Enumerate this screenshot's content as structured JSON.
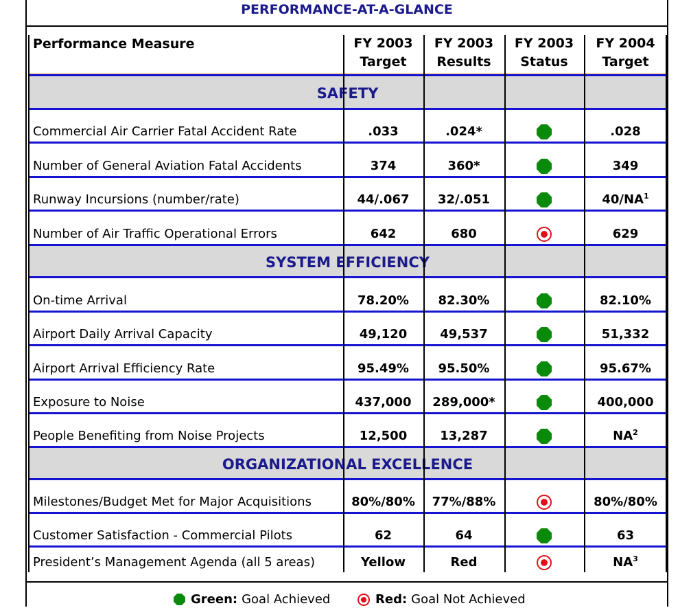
{
  "title": "PERFORMANCE-AT-A-GLANCE",
  "columns": [
    {
      "line1": "Performance Measure",
      "line2": ""
    },
    {
      "line1": "FY 2003",
      "line2": "Target"
    },
    {
      "line1": "FY 2003",
      "line2": "Results"
    },
    {
      "line1": "FY 2003",
      "line2": "Status"
    },
    {
      "line1": "FY 2004",
      "line2": "Target"
    }
  ],
  "sections": {
    "safety": "SAFETY",
    "efficiency": "SYSTEM EFFICIENCY",
    "org": "ORGANIZATIONAL EXCELLENCE"
  },
  "rows": [
    {
      "measure": "Commercial Air Carrier Fatal Accident Rate",
      "target": ".033",
      "result": ".024*",
      "status": "green",
      "next": ".028",
      "next_sup": ""
    },
    {
      "measure": "Number of General Aviation Fatal Accidents",
      "target": "374",
      "result": "360*",
      "status": "green",
      "next": "349",
      "next_sup": ""
    },
    {
      "measure": "Runway Incursions (number/rate)",
      "target": "44/.067",
      "result": "32/.051",
      "status": "green",
      "next": "40/NA",
      "next_sup": "1"
    },
    {
      "measure": "Number of Air Traffic Operational Errors",
      "target": "642",
      "result": "680",
      "status": "red",
      "next": "629",
      "next_sup": ""
    },
    {
      "measure": "On-time Arrival",
      "target": "78.20%",
      "result": "82.30%",
      "status": "green",
      "next": "82.10%",
      "next_sup": ""
    },
    {
      "measure": "Airport Daily Arrival Capacity",
      "target": "49,120",
      "result": "49,537",
      "status": "green",
      "next": "51,332",
      "next_sup": ""
    },
    {
      "measure": "Airport Arrival Efficiency Rate",
      "target": "95.49%",
      "result": "95.50%",
      "status": "green",
      "next": "95.67%",
      "next_sup": ""
    },
    {
      "measure": "Exposure to Noise",
      "target": "437,000",
      "result": "289,000*",
      "status": "green",
      "next": "400,000",
      "next_sup": ""
    },
    {
      "measure": "People Benefiting from Noise Projects",
      "target": "12,500",
      "result": "13,287",
      "status": "green",
      "next": "NA",
      "next_sup": "2"
    },
    {
      "measure": "Milestones/Budget Met for Major Acquisitions",
      "target": "80%/80%",
      "result": "77%/88%",
      "status": "red",
      "next": "80%/80%",
      "next_sup": ""
    },
    {
      "measure": "Customer Satisfaction - Commercial Pilots",
      "target": "62",
      "result": "64",
      "status": "green",
      "next": "63",
      "next_sup": ""
    },
    {
      "measure": "President’s Management Agenda (all 5 areas)",
      "target": "Yellow",
      "result": "Red",
      "status": "red",
      "next": "NA",
      "next_sup": "3"
    }
  ],
  "legend": {
    "green_label": "Green:",
    "green_text": "Goal Achieved",
    "red_label": "Red:",
    "red_text": "Goal Not Achieved"
  },
  "colors": {
    "green": "#0a8a0a",
    "red": "#e0101a",
    "band": "#1414d2",
    "heading": "#1a1a8c"
  }
}
